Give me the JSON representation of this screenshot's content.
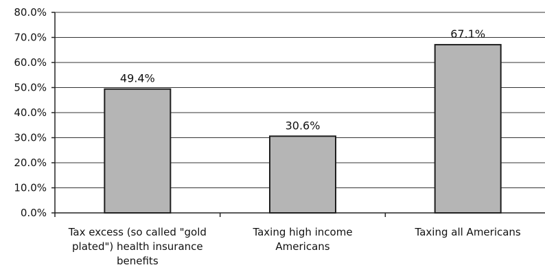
{
  "chart_data": {
    "type": "bar",
    "categories": [
      [
        "Tax excess (so called \"gold",
        "plated\") health insurance",
        "benefits"
      ],
      [
        "Taxing high income",
        "Americans"
      ],
      [
        "Taxing all Americans"
      ]
    ],
    "values": [
      49.4,
      30.6,
      67.1
    ],
    "data_labels": [
      "49.4%",
      "30.6%",
      "67.1%"
    ],
    "ylim": [
      0,
      80
    ],
    "yticks": [
      0,
      10,
      20,
      30,
      40,
      50,
      60,
      70,
      80
    ],
    "ytick_labels": [
      "0.0%",
      "10.0%",
      "20.0%",
      "30.0%",
      "40.0%",
      "50.0%",
      "60.0%",
      "70.0%",
      "80.0%"
    ],
    "title": "",
    "xlabel": "",
    "ylabel": "",
    "grid": true,
    "colors": {
      "bar_fill": "#b5b5b5",
      "bar_stroke": "#1e1e1e",
      "gridline": "#333333"
    }
  }
}
